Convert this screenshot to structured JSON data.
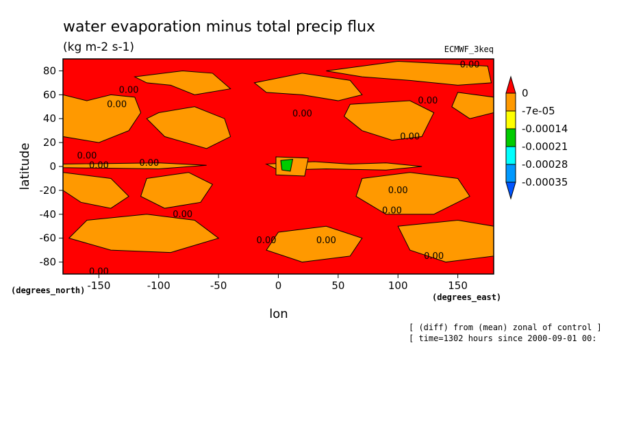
{
  "chart_data": {
    "type": "heatmap",
    "title": "water evaporation minus total precip flux",
    "subtitle": "(kg m-2 s-1)",
    "model": "ECMWF_3keq",
    "xlabel": "lon",
    "ylabel": "latitude",
    "x_unit": "(degrees_east)",
    "y_unit": "(degrees_north)",
    "xlim": [
      -180,
      180
    ],
    "ylim": [
      -90,
      90
    ],
    "x_ticks": [
      -150,
      -100,
      -50,
      0,
      50,
      100,
      150
    ],
    "y_ticks": [
      -80,
      -60,
      -40,
      -20,
      0,
      20,
      40,
      60,
      80
    ],
    "colorbar": {
      "levels": [
        "0",
        "-7e-05",
        "-0.00014",
        "-0.00021",
        "-0.00028",
        "-0.00035"
      ],
      "colors": [
        "#ff0000",
        "#ff9900",
        "#ffff00",
        "#00cc00",
        "#00ffff",
        "#0099ff",
        "#0055ff"
      ]
    },
    "contour_label": "0.00",
    "notes": [
      "[ (diff) from (mean) zonal of control ]",
      "[ time=1302 hours since 2000-09-01 00:"
    ]
  }
}
